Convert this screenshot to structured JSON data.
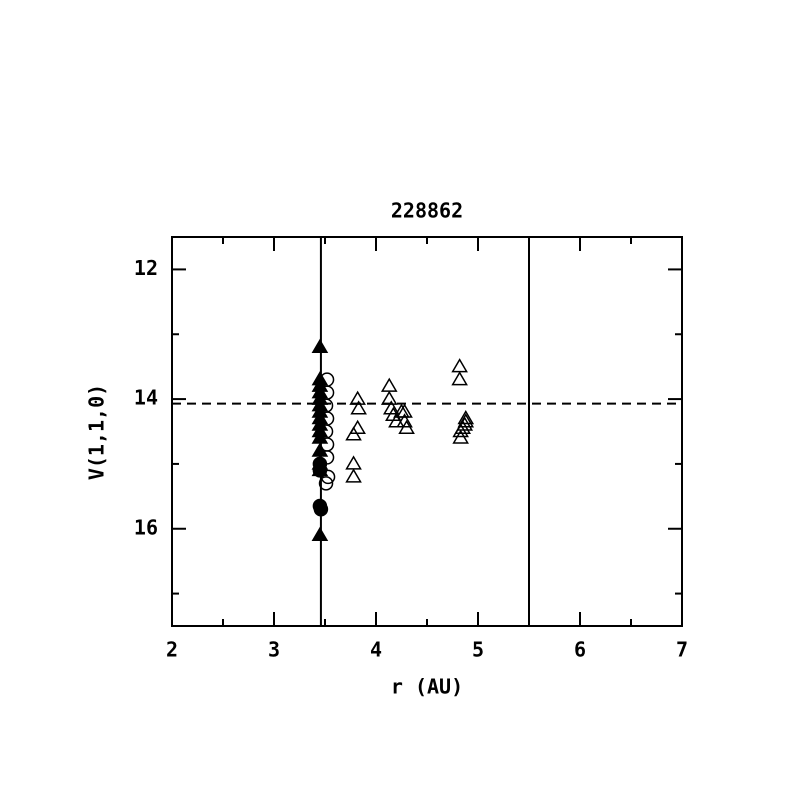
{
  "chart_data": {
    "type": "scatter",
    "title": "228862",
    "x_label": "r (AU)",
    "y_label": "V(1,1,0)",
    "xlim": [
      2,
      7
    ],
    "ylim": [
      17.5,
      11.5
    ],
    "xticks": [
      2,
      3,
      4,
      5,
      6,
      7
    ],
    "yticks": [
      12,
      14,
      16
    ],
    "x_minor_ticks": [
      2.5,
      3.5,
      4.5,
      5.5,
      6.5
    ],
    "y_minor_ticks": [
      13,
      15,
      17
    ],
    "vertical_lines": [
      3.46,
      5.5
    ],
    "horizontal_dashed_lines": [
      14.07
    ],
    "series": [
      {
        "marker": "filled-triangle",
        "color": "#000000",
        "x": [
          3.45,
          3.45,
          3.45,
          3.45,
          3.45,
          3.45,
          3.45,
          3.45,
          3.45,
          3.45,
          3.45,
          3.45,
          3.45,
          3.45,
          3.45
        ],
        "values": [
          13.2,
          13.7,
          13.8,
          13.9,
          14.0,
          14.1,
          14.2,
          14.3,
          14.4,
          14.5,
          14.6,
          14.8,
          15.0,
          15.1,
          16.1
        ]
      },
      {
        "marker": "filled-circle",
        "color": "#000000",
        "x": [
          3.45,
          3.45,
          3.45,
          3.46
        ],
        "values": [
          15.0,
          15.1,
          15.65,
          15.7
        ]
      },
      {
        "marker": "open-circle",
        "color": "#000000",
        "x": [
          3.52,
          3.52,
          3.51,
          3.52,
          3.51,
          3.52,
          3.52,
          3.53,
          3.51
        ],
        "values": [
          13.7,
          13.9,
          14.1,
          14.3,
          14.5,
          14.7,
          14.9,
          15.2,
          15.3
        ]
      },
      {
        "marker": "open-triangle",
        "color": "#000000",
        "x": [
          3.82,
          3.83,
          3.78,
          3.82,
          3.78,
          3.78,
          4.13,
          4.13,
          4.15,
          4.17,
          4.2,
          4.25,
          4.28,
          4.28,
          4.3,
          4.82,
          4.82,
          4.83,
          4.83,
          4.85,
          4.87,
          4.88,
          4.88
        ],
        "values": [
          14.0,
          14.15,
          14.55,
          14.45,
          15.0,
          15.2,
          13.8,
          14.0,
          14.15,
          14.25,
          14.35,
          14.2,
          14.2,
          14.35,
          14.45,
          13.5,
          13.7,
          14.6,
          14.5,
          14.45,
          14.4,
          14.35,
          14.3
        ]
      }
    ]
  }
}
